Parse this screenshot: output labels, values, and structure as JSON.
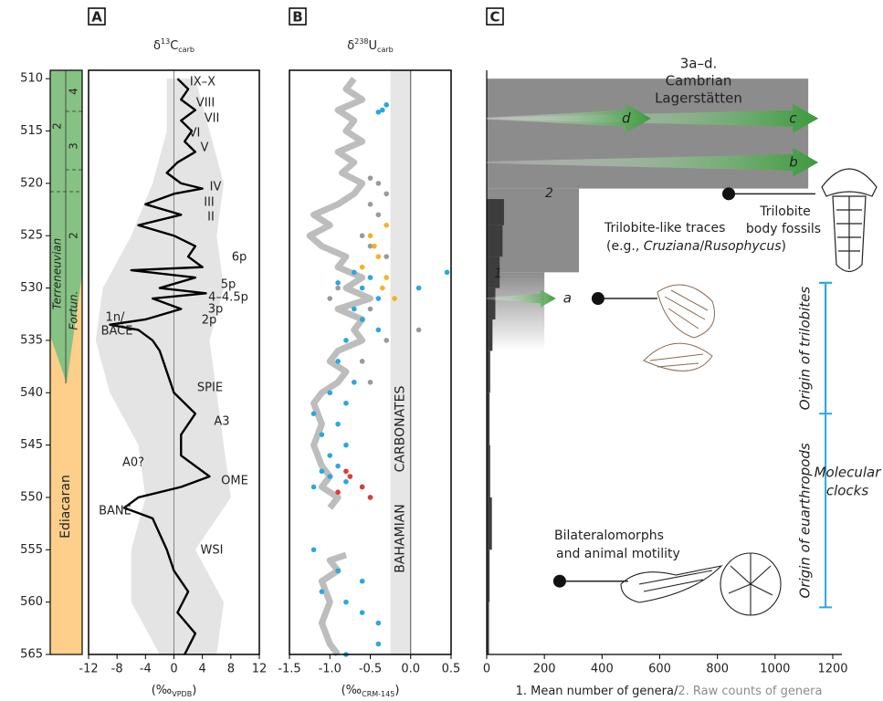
{
  "chart_data": [
    {
      "type": "line",
      "panel": "A",
      "title": "δ",
      "title_sup": "13",
      "title_main": "C",
      "title_sub": "carb",
      "x_label": "(‰",
      "x_label_sub": "VPDB",
      "x_label_end": ")",
      "xlim": [
        -12,
        12
      ],
      "xticks": [
        -12,
        -8,
        -4,
        0,
        4,
        8,
        12
      ],
      "ylim": [
        509.2,
        565
      ],
      "yticks": [
        510,
        515,
        520,
        525,
        530,
        535,
        540,
        545,
        550,
        555,
        560,
        565
      ],
      "refline": 0,
      "color": "#000000",
      "envelope_color": "#e4e4e4",
      "ages": [
        510,
        511,
        512,
        513,
        514,
        515,
        516,
        517,
        518,
        519,
        520,
        520.5,
        521,
        522,
        523,
        524,
        525,
        526,
        527,
        528,
        528.3,
        529,
        530,
        530.5,
        531,
        532,
        533,
        533.5,
        534,
        535,
        536,
        538,
        540,
        542,
        544,
        546,
        548,
        549,
        550,
        551,
        552,
        555,
        557,
        559,
        561,
        563,
        565
      ],
      "values": [
        0.5,
        2,
        1,
        3,
        1,
        2.5,
        1.5,
        3,
        0.5,
        -1,
        1,
        4,
        0,
        -4,
        1,
        -5,
        0,
        3,
        2,
        4,
        -6,
        3,
        -2,
        4.5,
        -3,
        1,
        -4,
        -9,
        -5,
        -3,
        -2,
        -1,
        0,
        3,
        1,
        1,
        5,
        1,
        -5,
        -7,
        -3,
        -1,
        0,
        2,
        0.5,
        3,
        1.5
      ],
      "envelope": {
        "ages": [
          510,
          515,
          520,
          525,
          530,
          535,
          540,
          545,
          550,
          555,
          560,
          565
        ],
        "min": [
          -1,
          -1,
          -3,
          -6,
          -10,
          -11,
          -9,
          -5,
          -4,
          -6,
          -6,
          -2
        ],
        "max": [
          3,
          5,
          7,
          6,
          7,
          5,
          6,
          7,
          8,
          3,
          7,
          6
        ]
      },
      "annotations": [
        "IX–X",
        "VIII",
        "VII",
        "VI",
        "V",
        "IV",
        "III",
        "II",
        "6p",
        "5p",
        "4–4.5p",
        "3p",
        "2p",
        "1n/",
        "BACE",
        "SPIE",
        "A3",
        "A0?",
        "OME",
        "BANE",
        "WSI"
      ],
      "strat": [
        "Ediacaran",
        "Terreneuvian",
        "Fortun.",
        "2",
        "2",
        "3",
        "4"
      ]
    },
    {
      "type": "scatter",
      "panel": "B",
      "title": "δ",
      "title_sup": "238",
      "title_main": "U",
      "title_sub": "carb",
      "x_label": "(‰",
      "x_label_sub": "CRM-145",
      "x_label_end": ")",
      "xlim": [
        -1.5,
        0.5
      ],
      "xticks": [
        -1.5,
        {
          "value": -1,
          "label": "-1.0"
        },
        -0.5,
        {
          "value": 0,
          "label": "0.0"
        },
        0.5
      ],
      "ylim": [
        509.2,
        565
      ],
      "refline": 0,
      "band": [
        -0.25,
        0
      ],
      "band_color": "#e6e6e6",
      "band_labels": [
        "CARBONATES",
        "BAHAMIAN"
      ],
      "curve": {
        "color": "#bdbdbd",
        "ages": [
          510,
          511,
          512,
          513,
          514,
          515,
          516,
          517,
          518,
          519,
          520,
          521,
          522,
          523,
          524,
          525,
          526,
          527,
          528,
          529,
          530,
          531,
          532,
          533,
          534,
          535,
          536,
          537,
          538,
          539,
          540,
          541,
          543,
          545,
          547,
          548,
          549,
          550,
          551,
          553,
          555.5,
          556,
          557,
          558,
          560,
          562,
          564,
          565
        ],
        "values": [
          -0.7,
          -0.8,
          -0.6,
          -0.9,
          -0.7,
          -0.8,
          -0.6,
          -0.9,
          -0.7,
          -0.85,
          -0.6,
          -0.7,
          -0.9,
          -1.2,
          -1.0,
          -1.25,
          -1.1,
          -0.8,
          -0.9,
          -0.6,
          -0.8,
          -0.5,
          -0.9,
          -0.6,
          -0.7,
          -0.6,
          -0.9,
          -1.0,
          -0.8,
          -0.9,
          -1.1,
          -1.2,
          -1.1,
          -1.2,
          -1.1,
          -1.0,
          -1.1,
          -0.9,
          -1.0,
          null,
          -0.8,
          -1.0,
          -0.9,
          -1.1,
          -1.0,
          -1.1,
          -1.0,
          -0.9
        ]
      },
      "series": [
        {
          "color": "#9a9a9a",
          "ages": [
            519.5,
            520,
            521,
            522,
            523,
            525,
            526,
            527,
            530,
            531,
            532,
            534,
            535,
            537,
            539
          ],
          "values": [
            -0.5,
            -0.4,
            -0.3,
            -0.5,
            -0.4,
            -0.6,
            -0.5,
            -0.3,
            -0.9,
            -1.0,
            -0.5,
            0.1,
            -0.3,
            -0.6,
            -0.5
          ]
        },
        {
          "color": "#f4b324",
          "ages": [
            524,
            525,
            526,
            527,
            528,
            529,
            530,
            531
          ],
          "values": [
            -0.3,
            -0.5,
            -0.45,
            -0.4,
            -0.6,
            -0.3,
            -0.35,
            -0.2
          ]
        },
        {
          "color": "#29a8e0",
          "ages": [
            512.5,
            513,
            513.2,
            528.5,
            528.5,
            529,
            529.5,
            530,
            530,
            531,
            532,
            533,
            534,
            535,
            537,
            539,
            540,
            541,
            542,
            543,
            544,
            545,
            546,
            547,
            547.5,
            548,
            548.5,
            549,
            549,
            550,
            555,
            557,
            558,
            559,
            560,
            561,
            562,
            564,
            565
          ],
          "values": [
            -0.3,
            -0.35,
            -0.4,
            -0.7,
            0.45,
            -0.5,
            -0.9,
            -0.6,
            0.1,
            -0.4,
            -0.7,
            -0.6,
            -0.4,
            -0.8,
            -0.9,
            -0.7,
            -1.0,
            -0.8,
            -1.2,
            -0.9,
            -1.1,
            -0.8,
            -1.0,
            -0.9,
            -1.1,
            -1.0,
            -0.8,
            -1.2,
            -0.6,
            -0.5,
            -1.2,
            -0.9,
            -0.6,
            -1.1,
            -0.8,
            -0.6,
            -0.4,
            -0.4,
            -0.8
          ]
        },
        {
          "color": "#e03c31",
          "ages": [
            547.5,
            548,
            549,
            549.5,
            550
          ],
          "values": [
            -0.8,
            -0.75,
            -0.6,
            -0.9,
            -0.5
          ]
        }
      ]
    },
    {
      "type": "step",
      "panel": "C",
      "x_label": "1. Mean number of genera/",
      "x_label_2": "2. Raw counts of genera",
      "xlim": [
        0,
        1200
      ],
      "xticks": [
        0,
        200,
        400,
        600,
        800,
        1000,
        1200
      ],
      "ylim": [
        509.2,
        565
      ],
      "series": [
        {
          "label": "2",
          "color": "#8c8c8c",
          "bins": [
            510,
            520.5,
            528.5,
            536
          ],
          "values": [
            1115,
            320,
            200
          ]
        },
        {
          "label": "1",
          "color": "#3d3d3d",
          "bins": [
            521.5,
            524,
            527,
            530,
            533,
            536,
            540,
            545,
            550,
            555,
            560,
            565
          ],
          "values": [
            60,
            55,
            45,
            30,
            20,
            12,
            10,
            12,
            18,
            10,
            8
          ]
        }
      ],
      "arrows": {
        "title": [
          "3a–d.",
          "Cambrian",
          "Lagerstätten"
        ],
        "color": "#3a9a3a",
        "items": [
          {
            "label": "c",
            "age": 513.8,
            "x": 1150
          },
          {
            "label": "d",
            "age": 513.8,
            "x": 570
          },
          {
            "label": "b",
            "age": 518,
            "x": 1150
          },
          {
            "label": "a",
            "age": 531,
            "x": 240
          }
        ]
      },
      "markers": [
        {
          "lines": [
            "Trilobite",
            "body fossils"
          ],
          "x": 839,
          "age": 521
        },
        {
          "lines": [
            "Trilobite-like traces",
            [
              "(e.g., ",
              "Cruziana",
              "/",
              "Rusophycus",
              ")"
            ]
          ],
          "x": 386,
          "age": 531
        },
        {
          "lines": [
            "Bilateralomorphs",
            "and animal motility"
          ],
          "x": 253,
          "age": 558
        }
      ],
      "ranges": {
        "color": "#29a8e0",
        "label": [
          "Molecular",
          "clocks"
        ],
        "items": [
          {
            "label": "Origin of trilobites",
            "x": 1175,
            "ylim": [
              529.5,
              542
            ]
          },
          {
            "label": "Origin of euarthropods",
            "x": 1175,
            "ylim": [
              529.5,
              560.5
            ]
          }
        ]
      }
    }
  ]
}
